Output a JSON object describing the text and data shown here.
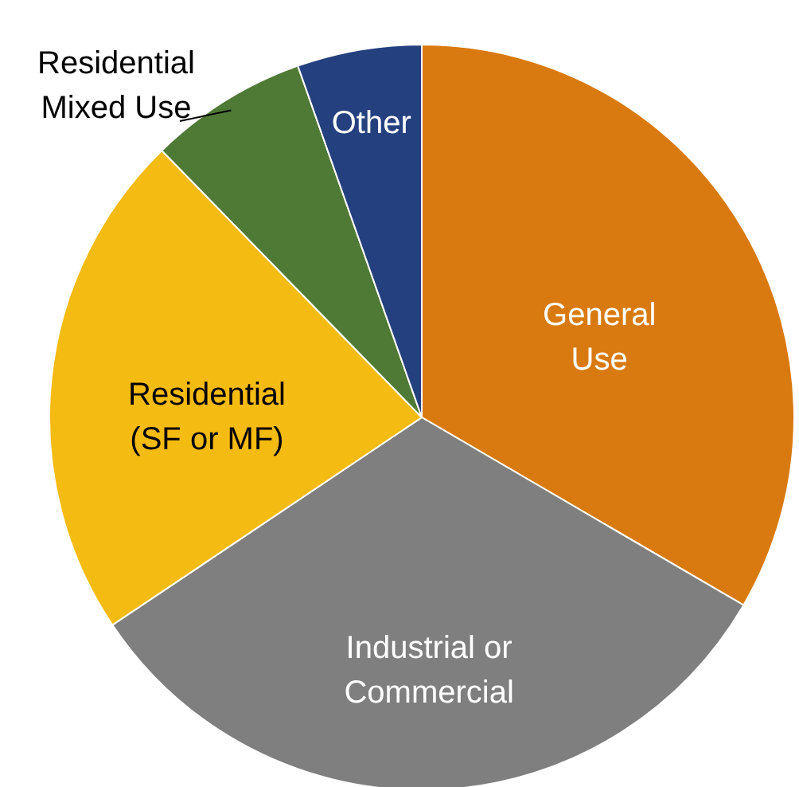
{
  "chart_data": {
    "type": "pie",
    "categories": [
      "General\nUse",
      "Industrial or\nCommercial",
      "Residential\n(SF or MF)",
      "Residential\nMixed Use",
      "Other"
    ],
    "values": [
      33.4,
      32.2,
      22.1,
      6.9,
      5.4
    ],
    "colors": [
      "#d97a10",
      "#7f7f7f",
      "#f4bb12",
      "#4f7a36",
      "#24407f"
    ]
  }
}
